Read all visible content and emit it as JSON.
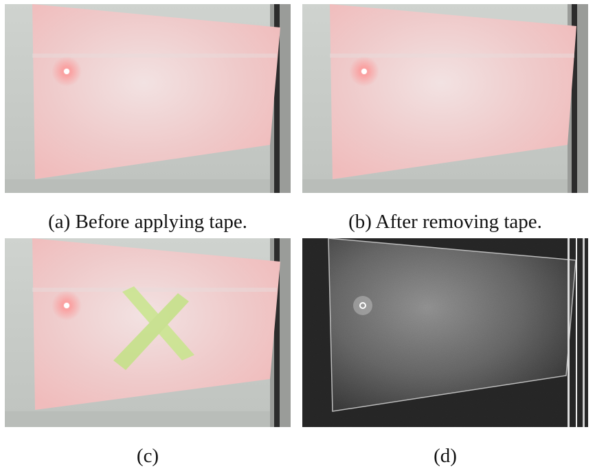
{
  "figure": {
    "panels": [
      {
        "id": "a",
        "caption": "(a) Before applying tape."
      },
      {
        "id": "b",
        "caption": "(b) After removing tape."
      },
      {
        "id": "c",
        "caption": "(c)"
      },
      {
        "id": "d",
        "caption": "(d)"
      }
    ],
    "colors": {
      "wall": "#c9cdc8",
      "sheet": "#efc9c9",
      "sheet_edge": "#f3b7b7",
      "laser_dot": "#ff5a5a",
      "tape": "#c6e58a",
      "frame_dark": "#2a2a2a",
      "speckle_bg": "#1a1a1a",
      "speckle_sheet": "#8e8e8e"
    }
  }
}
